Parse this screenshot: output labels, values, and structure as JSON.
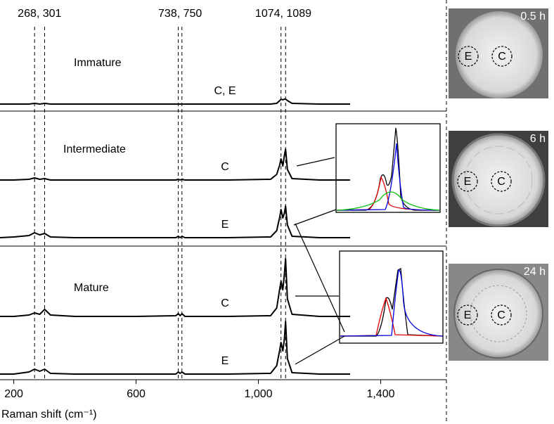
{
  "chart_data": {
    "type": "line",
    "xlabel": "Raman shift (cm⁻¹)",
    "xlim": [
      155,
      1615
    ],
    "xticks": [
      200,
      600,
      {
        "value": 1000,
        "label": "1,000"
      },
      {
        "value": 1400,
        "label": "1,400"
      }
    ],
    "color": "#000000",
    "reference_lines": [
      {
        "label": "268, 301",
        "values": [
          268,
          301
        ]
      },
      {
        "label": "738, 750",
        "values": [
          738,
          750
        ]
      },
      {
        "label": "1074, 1089",
        "values": [
          1074,
          1089
        ]
      }
    ],
    "x": [
      155,
      200,
      250,
      268,
      285,
      301,
      320,
      400,
      600,
      730,
      738,
      744,
      750,
      760,
      900,
      1040,
      1060,
      1070,
      1074,
      1080,
      1085,
      1089,
      1095,
      1110,
      1200,
      1300
    ],
    "panels": [
      {
        "title": "Immature",
        "series": [
          {
            "name": "C, E",
            "values": [
              0,
              0,
              0,
              1,
              0,
              1,
              0,
              0,
              0,
              0,
              0,
              0,
              0,
              0,
              0,
              0,
              1,
              5,
              7,
              6,
              7,
              7,
              5,
              1,
              0,
              0
            ]
          }
        ]
      },
      {
        "title": "Intermediate",
        "series": [
          {
            "name": "C",
            "values": [
              0,
              0,
              1,
              3,
              1,
              2,
              0,
              0,
              0,
              0,
              1,
              0,
              1,
              0,
              0,
              1,
              8,
              22,
              30,
              20,
              35,
              44,
              15,
              2,
              0,
              0
            ]
          },
          {
            "name": "E",
            "values": [
              0,
              1,
              3,
              7,
              4,
              6,
              1,
              0,
              0,
              0,
              2,
              0,
              2,
              0,
              0,
              1,
              10,
              30,
              40,
              28,
              35,
              45,
              18,
              2,
              0,
              0
            ]
          }
        ]
      },
      {
        "title": "Mature",
        "series": [
          {
            "name": "C",
            "values": [
              0,
              0,
              2,
              5,
              3,
              10,
              2,
              0,
              0,
              1,
              4,
              1,
              4,
              0,
              0,
              1,
              12,
              40,
              50,
              38,
              60,
              82,
              25,
              3,
              0,
              0
            ]
          },
          {
            "name": "E",
            "values": [
              0,
              0,
              3,
              7,
              4,
              7,
              1,
              0,
              0,
              0,
              3,
              1,
              3,
              0,
              0,
              1,
              12,
              35,
              45,
              33,
              50,
              75,
              22,
              2,
              0,
              0
            ]
          }
        ]
      }
    ],
    "images": [
      {
        "time": "0.5 h",
        "labels": [
          "E",
          "C"
        ]
      },
      {
        "time": "6 h",
        "labels": [
          "E",
          "C"
        ]
      },
      {
        "time": "24 h",
        "labels": [
          "E",
          "C"
        ]
      }
    ]
  }
}
